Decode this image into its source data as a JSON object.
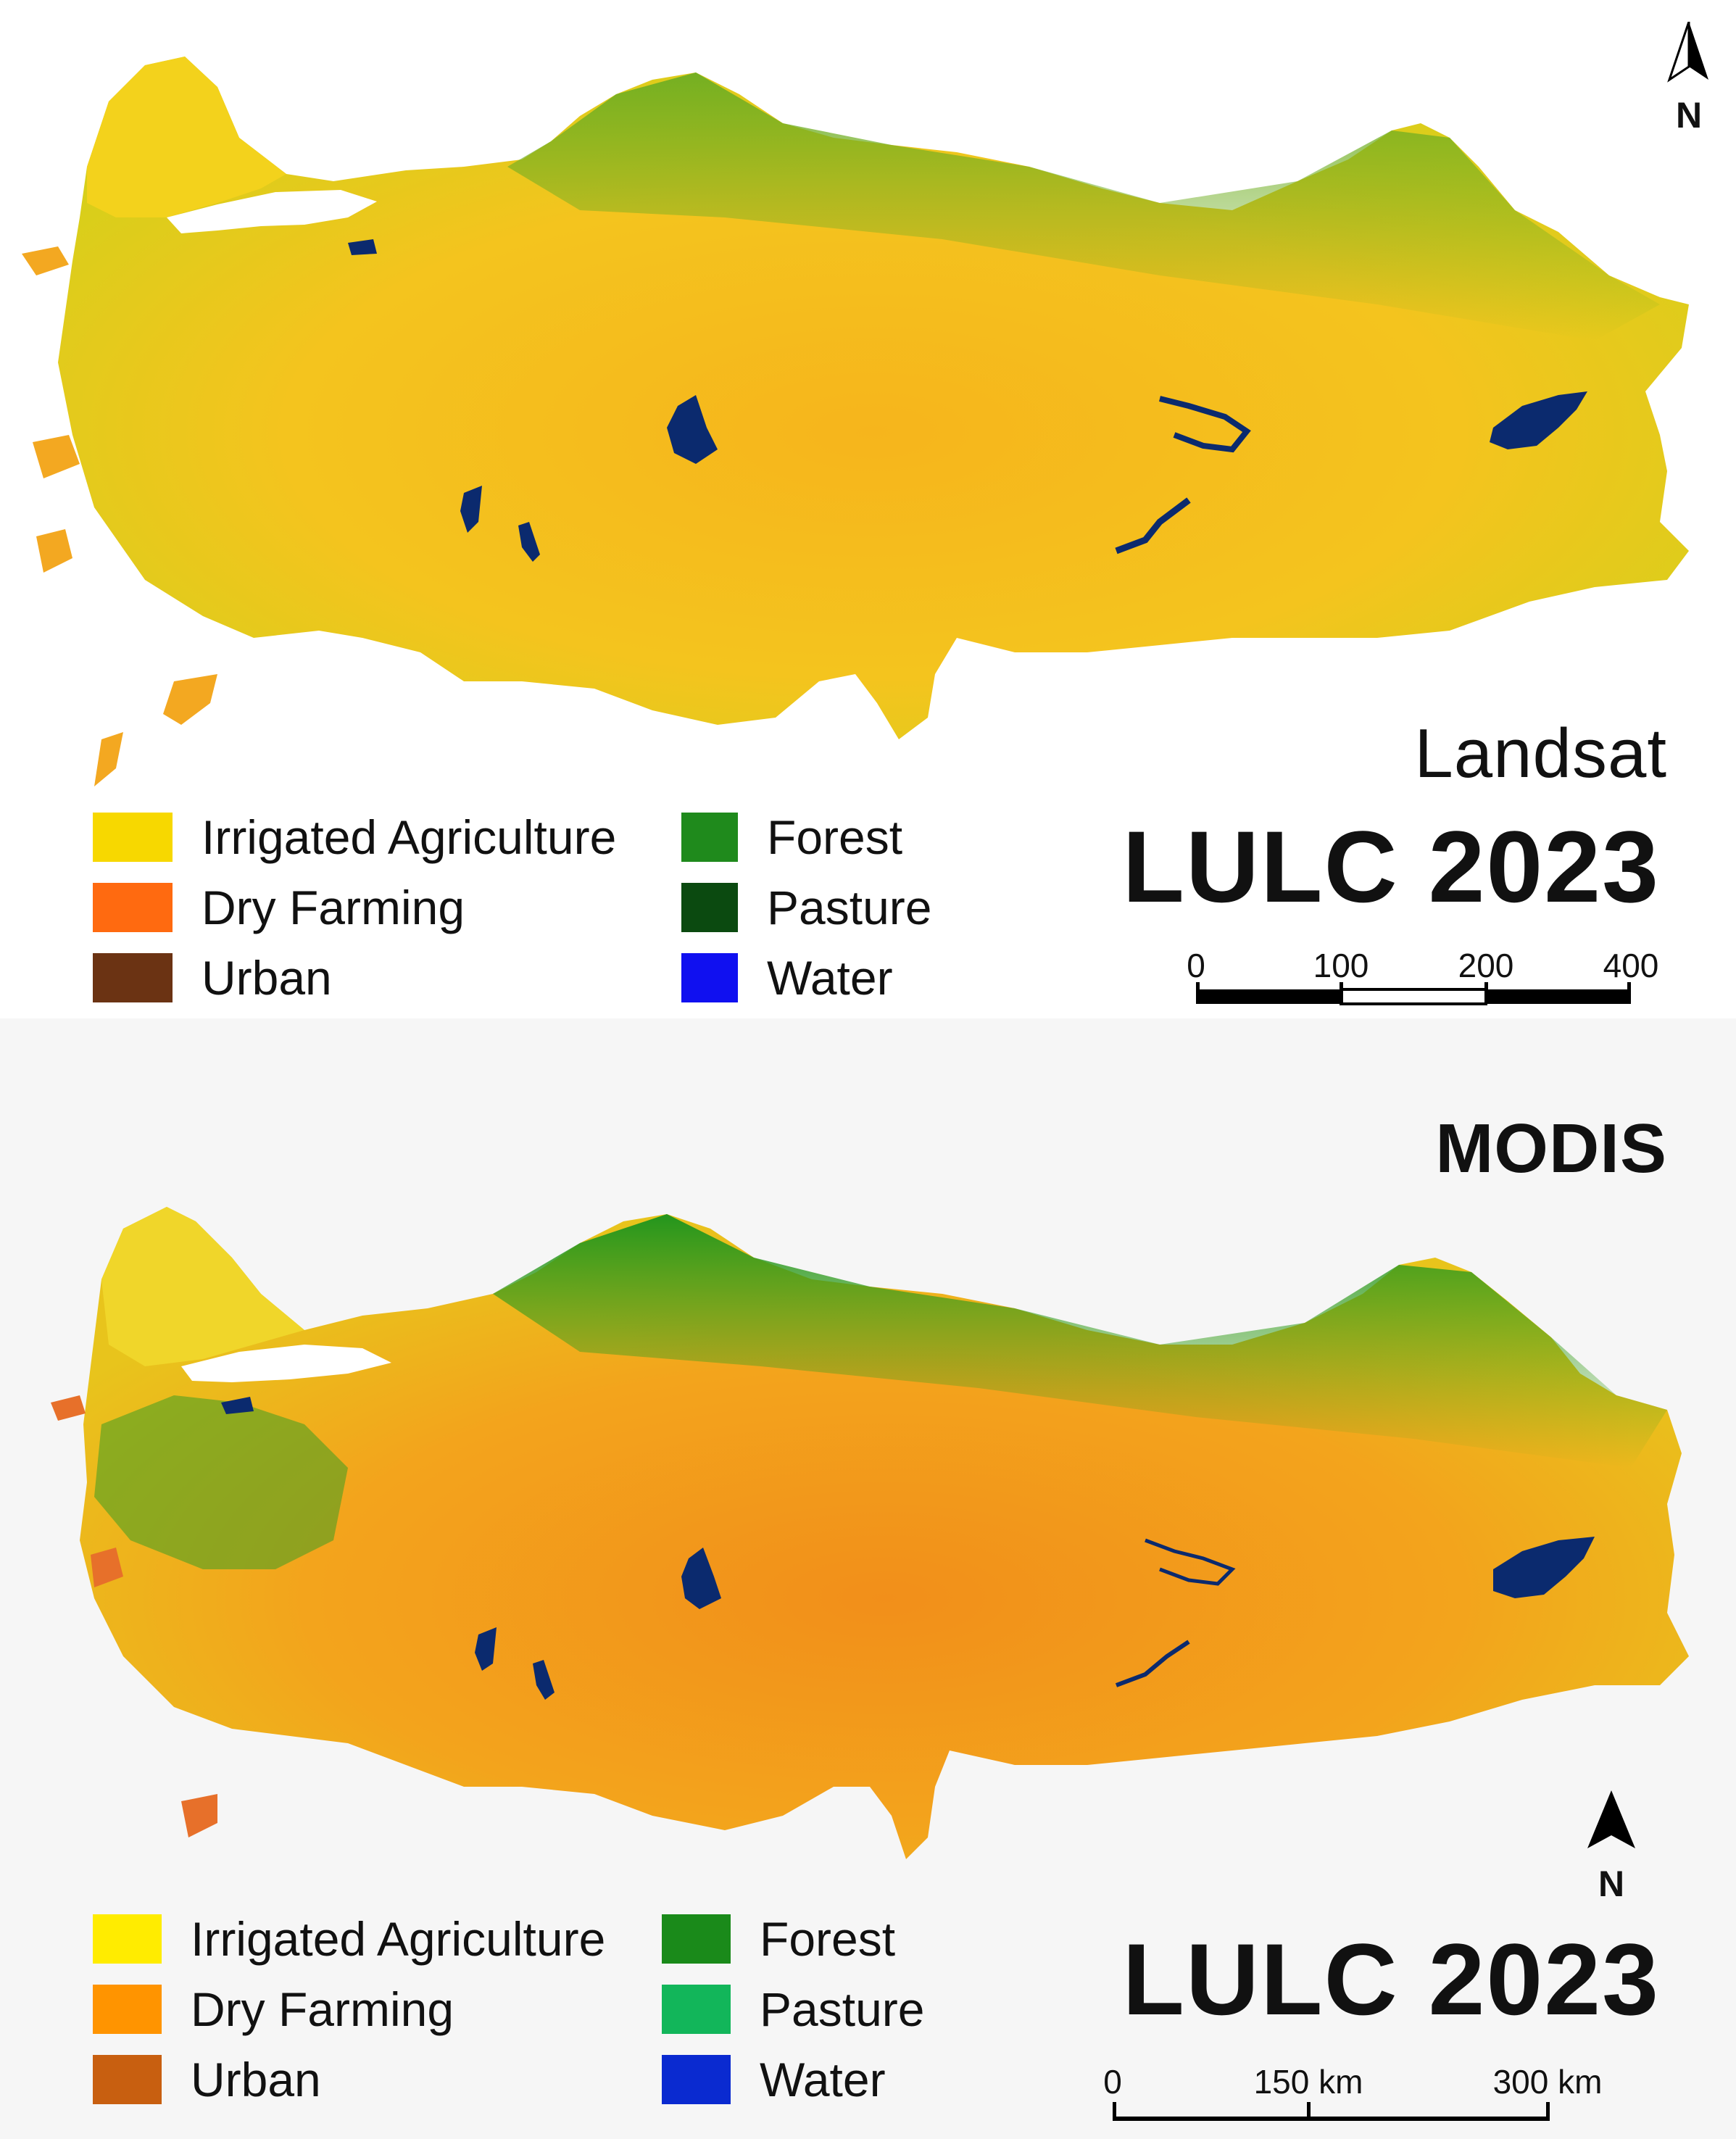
{
  "landsat": {
    "source_label": "Landsat",
    "title": "LULC 2023",
    "north_label": "N",
    "legend": [
      {
        "label": "Irrigated Agriculture",
        "color": "#f7d800"
      },
      {
        "label": "Dry Farming",
        "color": "#ff6a10"
      },
      {
        "label": "Urban",
        "color": "#6b3313"
      },
      {
        "label": "Forest",
        "color": "#1f8a1c"
      },
      {
        "label": "Pasture",
        "color": "#0b4a10"
      },
      {
        "label": "Water",
        "color": "#1010f0"
      }
    ],
    "scale_ticks": [
      "0",
      "100",
      "200",
      "400"
    ],
    "map_colors": {
      "base": "#f5c21a",
      "forest": "#7fb320",
      "water": "#0b2a6e"
    }
  },
  "modis": {
    "source_label": "MODIS",
    "title": "LULC 2023",
    "north_label": "N",
    "legend": [
      {
        "label": "Irrigated Agriculture",
        "color": "#ffec00"
      },
      {
        "label": "Dry Farming",
        "color": "#ff9400"
      },
      {
        "label": "Urban",
        "color": "#c85f10"
      },
      {
        "label": "Forest",
        "color": "#1a8a1a"
      },
      {
        "label": "Pasture",
        "color": "#12b65a"
      },
      {
        "label": "Water",
        "color": "#0a2ad0"
      }
    ],
    "scale_ticks": [
      "0",
      "150 km",
      "300 km"
    ],
    "map_colors": {
      "base": "#f4a41c",
      "forest": "#2f9e1e",
      "water": "#0b2a6e"
    }
  }
}
